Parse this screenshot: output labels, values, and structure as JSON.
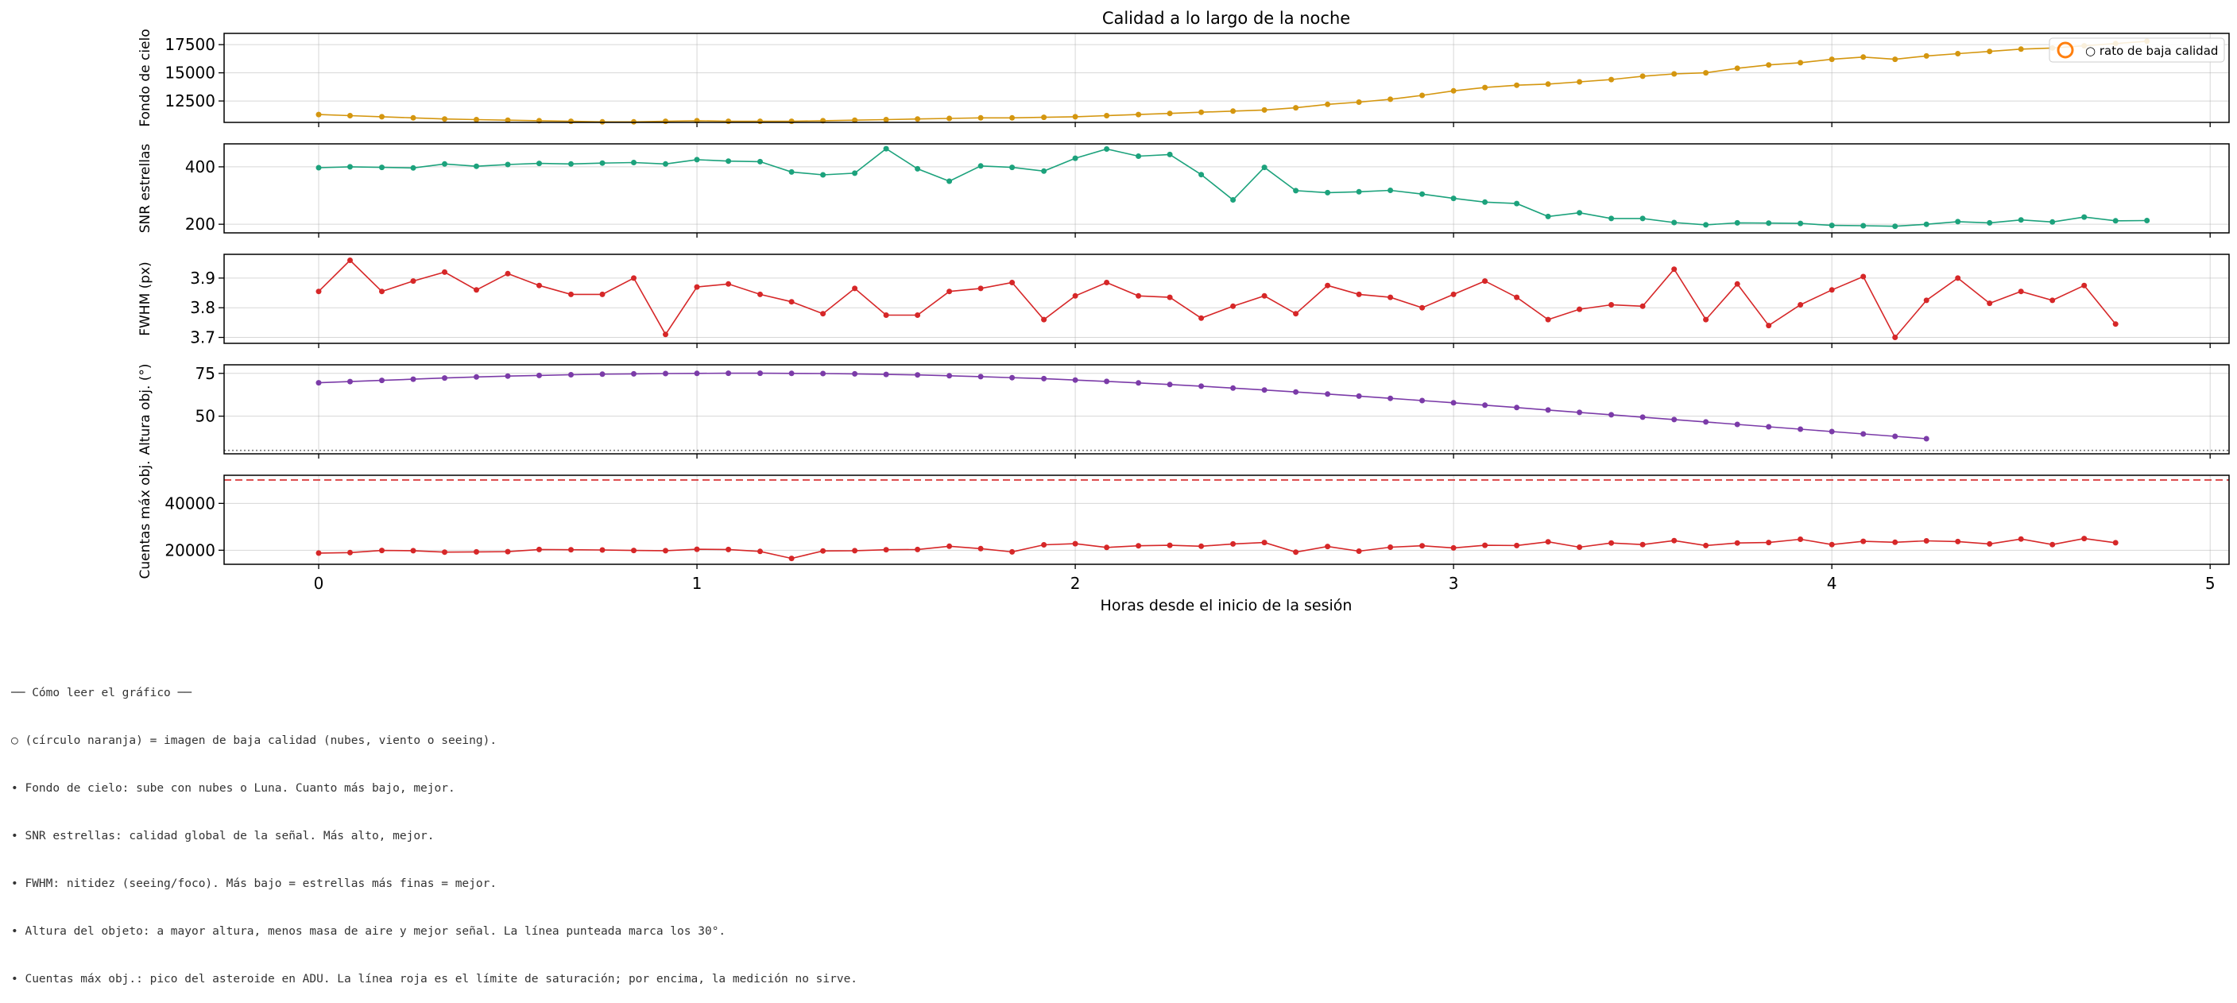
{
  "chart_data": {
    "type": "line",
    "title": "Calidad a lo largo de la noche",
    "xlabel": "Horas desde el inicio de la sesión",
    "xlim": [
      -0.25,
      5.05
    ],
    "xticks": [
      0,
      1,
      2,
      3,
      4,
      5
    ],
    "grid": true,
    "legend": {
      "location": "top-right",
      "label": "○ rato de baja calidad",
      "marker_color": "#ff7f0e"
    },
    "x": [
      0,
      0.083,
      0.167,
      0.25,
      0.333,
      0.417,
      0.5,
      0.583,
      0.667,
      0.75,
      0.833,
      0.917,
      1,
      1.083,
      1.167,
      1.25,
      1.333,
      1.417,
      1.5,
      1.583,
      1.667,
      1.75,
      1.833,
      1.917,
      2,
      2.083,
      2.167,
      2.25,
      2.333,
      2.417,
      2.5,
      2.583,
      2.667,
      2.75,
      2.833,
      2.917,
      3,
      3.083,
      3.167,
      3.25,
      3.333,
      3.417,
      3.5,
      3.583,
      3.667,
      3.75,
      3.833,
      3.917,
      4,
      4.083,
      4.167,
      4.25,
      4.333,
      4.417,
      4.5,
      4.583,
      4.667,
      4.75,
      4.833
    ],
    "panels": [
      {
        "ylabel": "Fondo de cielo",
        "color": "#d4960f",
        "ylim": [
          10600,
          18500
        ],
        "yticks": [
          12500,
          15000,
          17500
        ],
        "values": [
          11300,
          11200,
          11100,
          11000,
          10900,
          10850,
          10800,
          10750,
          10700,
          10650,
          10650,
          10700,
          10750,
          10700,
          10700,
          10700,
          10750,
          10800,
          10850,
          10900,
          10950,
          11000,
          11000,
          11050,
          11100,
          11200,
          11300,
          11400,
          11500,
          11600,
          11700,
          11900,
          12200,
          12400,
          12650,
          13000,
          13400,
          13700,
          13900,
          14000,
          14200,
          14400,
          14700,
          14900,
          15000,
          15400,
          15700,
          15900,
          16200,
          16400,
          16200,
          16500,
          16700,
          16900,
          17100,
          17200,
          17400,
          17600,
          17800
        ]
      },
      {
        "ylabel": "SNR estrellas",
        "color": "#1ca27c",
        "ylim": [
          170,
          480
        ],
        "yticks": [
          200,
          400
        ],
        "values": [
          397,
          400,
          398,
          396,
          410,
          402,
          408,
          412,
          410,
          413,
          415,
          410,
          425,
          420,
          418,
          382,
          372,
          378,
          463,
          393,
          350,
          403,
          398,
          385,
          430,
          462,
          437,
          443,
          373,
          285,
          398,
          317,
          310,
          313,
          318,
          305,
          290,
          277,
          272,
          227,
          240,
          220,
          220,
          206,
          198,
          205,
          204,
          203,
          196,
          195,
          193,
          200,
          209,
          205,
          215,
          208,
          225,
          212,
          213
        ],
        "last_visible_value": 212
      },
      {
        "ylabel": "FWHM (px)",
        "color": "#d62728",
        "ylim": [
          3.68,
          3.98
        ],
        "yticks": [
          3.7,
          3.8,
          3.9
        ],
        "values": [
          3.855,
          3.96,
          3.855,
          3.89,
          3.92,
          3.86,
          3.915,
          3.875,
          3.845,
          3.845,
          3.9,
          3.71,
          3.87,
          3.88,
          3.845,
          3.82,
          3.78,
          3.865,
          3.775,
          3.775,
          3.855,
          3.865,
          3.885,
          3.76,
          3.84,
          3.885,
          3.84,
          3.835,
          3.765,
          3.805,
          3.84,
          3.78,
          3.875,
          3.845,
          3.835,
          3.8,
          3.845,
          3.89,
          3.835,
          3.76,
          3.795,
          3.81,
          3.805,
          3.93,
          3.76,
          3.88,
          3.74,
          3.81,
          3.86,
          3.905,
          3.7,
          3.825,
          3.9,
          3.815,
          3.855,
          3.825,
          3.875,
          3.745
        ]
      },
      {
        "ylabel": "Altura obj. (°)",
        "color": "#7b3ba8",
        "ylim": [
          28,
          80
        ],
        "yticks": [
          50,
          75
        ],
        "reference_line": {
          "value": 30,
          "style": "dotted",
          "color": "#777777"
        },
        "values": [
          69.5,
          70.2,
          70.9,
          71.6,
          72.3,
          72.9,
          73.4,
          73.8,
          74.2,
          74.5,
          74.7,
          74.9,
          75,
          75.1,
          75.1,
          75,
          74.9,
          74.7,
          74.4,
          74.1,
          73.6,
          73.1,
          72.5,
          71.9,
          71.1,
          70.3,
          69.4,
          68.5,
          67.5,
          66.4,
          65.3,
          64.1,
          62.9,
          61.7,
          60.4,
          59.1,
          57.8,
          56.4,
          55,
          53.6,
          52.2,
          50.8,
          49.4,
          48,
          46.6,
          45.2,
          43.8,
          42.4,
          41,
          39.6,
          38.2,
          36.8
        ]
      },
      {
        "ylabel": "Cuentas máx obj.",
        "color": "#d62728",
        "ylim": [
          14000,
          52000
        ],
        "yticks": [
          20000,
          40000
        ],
        "reference_line": {
          "value": 50000,
          "style": "dashed",
          "color": "#d62728"
        },
        "values": [
          18800,
          19000,
          19900,
          19800,
          19200,
          19300,
          19400,
          20300,
          20200,
          20100,
          19900,
          19800,
          20400,
          20300,
          19500,
          16500,
          19700,
          19800,
          20200,
          20300,
          21700,
          20700,
          19300,
          22300,
          22800,
          21200,
          21900,
          22100,
          21700,
          22700,
          23300,
          19200,
          21600,
          19600,
          21300,
          21900,
          21000,
          22100,
          22000,
          23600,
          21300,
          23100,
          22400,
          24100,
          22000,
          23100,
          23300,
          24700,
          22400,
          23800,
          23400,
          24000,
          23700,
          22700,
          24800,
          22400,
          25000,
          23200
        ]
      }
    ]
  },
  "notes": {
    "header": "── Cómo leer el gráfico ──",
    "lines": [
      "○ (círculo naranja) = imagen de baja calidad (nubes, viento o seeing).",
      "• Fondo de cielo: sube con nubes o Luna. Cuanto más bajo, mejor.",
      "• SNR estrellas: calidad global de la señal. Más alto, mejor.",
      "• FWHM: nitidez (seeing/foco). Más bajo = estrellas más finas = mejor.",
      "• Altura del objeto: a mayor altura, menos masa de aire y mejor señal. La línea punteada marca los 30°.",
      "• Cuentas máx obj.: pico del asteroide en ADU. La línea roja es el límite de saturación; por encima, la medición no sirve."
    ]
  }
}
